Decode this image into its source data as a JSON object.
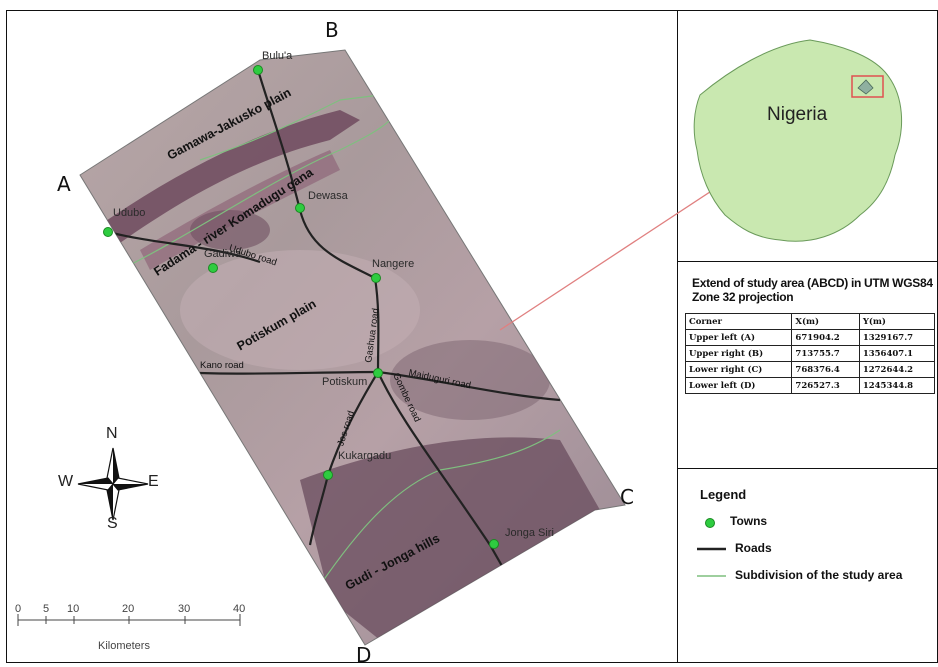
{
  "corners": {
    "a": "A",
    "b": "B",
    "c": "C",
    "d": "D"
  },
  "towns": [
    "Bulu'a",
    "Dewasa",
    "Udubo",
    "Gadiwa",
    "Nangere",
    "Potiskum",
    "Kukargadu",
    "Jonga Siri"
  ],
  "roads": [
    "Udubo road",
    "Gashua road",
    "Kano road",
    "Maiduguri road",
    "Gombe road",
    "Jos road"
  ],
  "regions": [
    "Gamawa-Jakusko plain",
    "Fadama - river Komadugu gana",
    "Potiskum plain",
    "Gudi - Jonga hills"
  ],
  "inset": {
    "country": "Nigeria"
  },
  "table": {
    "title": "Extend of study area (ABCD) in UTM WGS84 Zone 32 projection",
    "headers": [
      "Corner",
      "X(m)",
      "Y(m)"
    ],
    "rows": [
      [
        "Upper left (A)",
        "671904.2",
        "1329167.7"
      ],
      [
        "Upper right (B)",
        "713755.7",
        "1356407.1"
      ],
      [
        "Lower right (C)",
        "768376.4",
        "1272644.2"
      ],
      [
        "Lower left (D)",
        "726527.3",
        "1245344.8"
      ]
    ]
  },
  "legend": {
    "title": "Legend",
    "items": [
      "Towns",
      "Roads",
      "Subdivision of the study area"
    ]
  },
  "compass": {
    "n": "N",
    "s": "S",
    "e": "E",
    "w": "W"
  },
  "scale": {
    "ticks": [
      "0",
      "5",
      "10",
      "20",
      "30",
      "40"
    ],
    "unit": "Kilometers"
  },
  "colors": {
    "town": "#2ecc40",
    "road": "#222222",
    "subdivision": "#7fbf7f",
    "country_fill": "#c9e8b0",
    "study_box": "#e05050"
  }
}
